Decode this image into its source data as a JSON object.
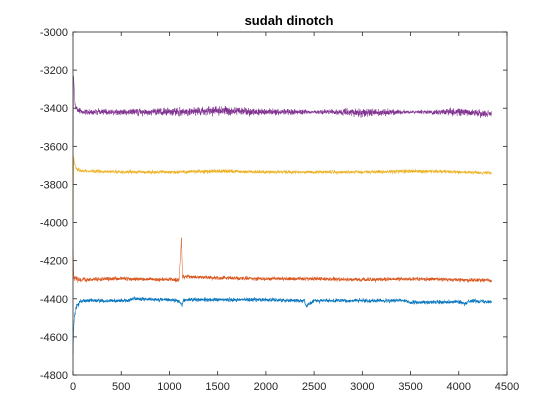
{
  "chart_data": {
    "type": "line",
    "title": "sudah dinotch",
    "xlabel": "",
    "ylabel": "",
    "xlim": [
      0,
      4500
    ],
    "ylim": [
      -4800,
      -3000
    ],
    "x_ticks": [
      0,
      500,
      1000,
      1500,
      2000,
      2500,
      3000,
      3500,
      4000,
      4500
    ],
    "y_ticks": [
      -3000,
      -3200,
      -3400,
      -3600,
      -3800,
      -4000,
      -4200,
      -4400,
      -4600,
      -4800
    ],
    "grid": false,
    "legend": "none",
    "n_points": 4340,
    "series": [
      {
        "color": "#0072BD",
        "x": [
          0,
          10,
          30,
          60,
          100,
          200,
          560,
          600,
          1000,
          1100,
          1130,
          1140,
          1200,
          1500,
          2000,
          2400,
          2420,
          2500,
          3000,
          3450,
          3500,
          4000,
          4070,
          4100,
          4340
        ],
        "values": [
          -4690,
          -4520,
          -4450,
          -4420,
          -4410,
          -4410,
          -4410,
          -4400,
          -4405,
          -4410,
          -4440,
          -4410,
          -4405,
          -4405,
          -4405,
          -4410,
          -4440,
          -4410,
          -4410,
          -4410,
          -4420,
          -4415,
          -4430,
          -4410,
          -4415
        ],
        "noise": [
          10,
          40,
          35,
          30,
          25,
          20,
          20,
          20,
          20,
          20,
          25,
          20,
          20,
          20,
          20,
          20,
          20,
          20,
          20,
          20,
          20,
          20,
          20,
          20,
          20
        ]
      },
      {
        "color": "#D95319",
        "x": [
          0,
          10,
          30,
          60,
          100,
          500,
          1000,
          1100,
          1125,
          1135,
          1150,
          1200,
          1500,
          2000,
          2500,
          3000,
          3500,
          4000,
          4340
        ],
        "values": [
          -4140,
          -4300,
          -4290,
          -4300,
          -4300,
          -4295,
          -4300,
          -4300,
          -4080,
          -4280,
          -4285,
          -4285,
          -4290,
          -4295,
          -4295,
          -4300,
          -4295,
          -4300,
          -4305
        ],
        "noise": [
          10,
          40,
          30,
          25,
          20,
          20,
          20,
          20,
          10,
          20,
          20,
          20,
          20,
          20,
          20,
          20,
          20,
          20,
          20
        ]
      },
      {
        "color": "#EDB120",
        "x": [
          0,
          8,
          20,
          40,
          100,
          500,
          1000,
          1500,
          2000,
          2500,
          3000,
          3500,
          4000,
          4340
        ],
        "values": [
          -3980,
          -3660,
          -3700,
          -3720,
          -3730,
          -3735,
          -3735,
          -3730,
          -3735,
          -3735,
          -3735,
          -3730,
          -3735,
          -3740
        ],
        "noise": [
          10,
          30,
          25,
          20,
          18,
          18,
          18,
          22,
          18,
          18,
          18,
          22,
          18,
          18
        ]
      },
      {
        "color": "#7E2F8E",
        "x": [
          0,
          6,
          20,
          50,
          100,
          400,
          800,
          1000,
          1300,
          1500,
          1800,
          2000,
          2500,
          2800,
          3000,
          3300,
          3500,
          3800,
          4000,
          4200,
          4340
        ],
        "values": [
          -3600,
          -3230,
          -3380,
          -3410,
          -3420,
          -3420,
          -3420,
          -3420,
          -3415,
          -3415,
          -3415,
          -3420,
          -3420,
          -3420,
          -3425,
          -3420,
          -3420,
          -3420,
          -3420,
          -3425,
          -3430
        ],
        "noise": [
          10,
          30,
          30,
          30,
          30,
          30,
          35,
          40,
          45,
          45,
          40,
          35,
          20,
          30,
          45,
          30,
          15,
          30,
          40,
          35,
          30
        ]
      }
    ]
  }
}
